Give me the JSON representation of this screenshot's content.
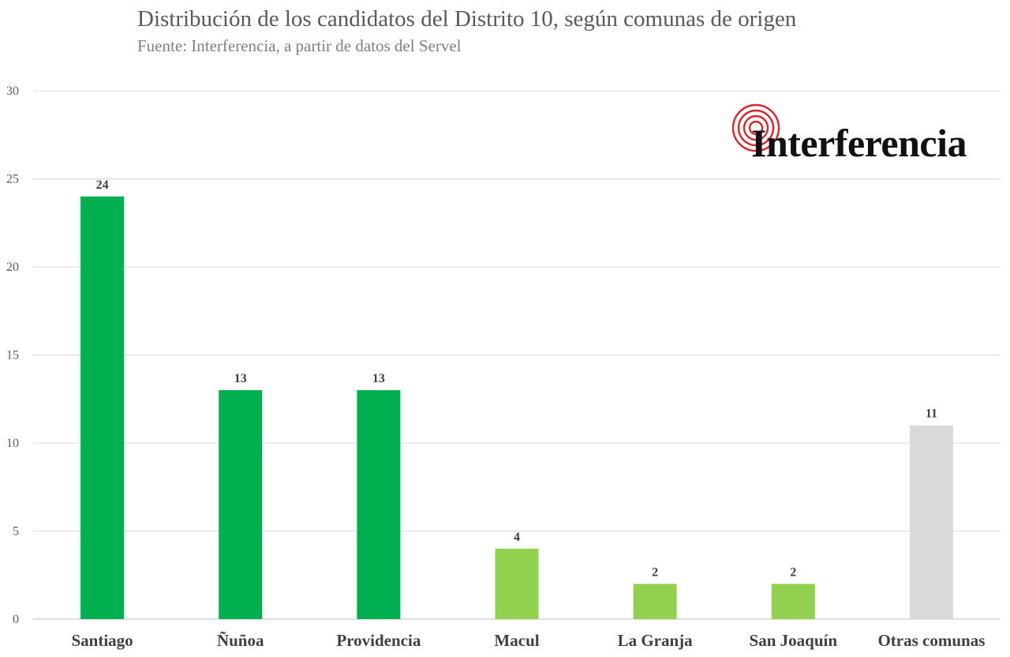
{
  "chart_data": {
    "type": "bar",
    "title": "Distribución de los candidatos del Distrito 10, según comunas de origen",
    "subtitle": "Fuente: Interferencia, a partir de datos del Servel",
    "categories": [
      "Santiago",
      "Ñuñoa",
      "Providencia",
      "Macul",
      "La Granja",
      "San Joaquín",
      "Otras comunas"
    ],
    "values": [
      24,
      13,
      13,
      4,
      2,
      2,
      11
    ],
    "bar_colors": [
      "#00b050",
      "#00b050",
      "#00b050",
      "#92d050",
      "#92d050",
      "#92d050",
      "#d9d9d9"
    ],
    "ylim": [
      0,
      30
    ],
    "yticks": [
      0,
      5,
      10,
      15,
      20,
      25,
      30
    ],
    "grid": true,
    "data_labels": true,
    "xlabel": "",
    "ylabel": ""
  },
  "logo": {
    "text": "Interferencia",
    "ring_color": "#d9262b"
  }
}
